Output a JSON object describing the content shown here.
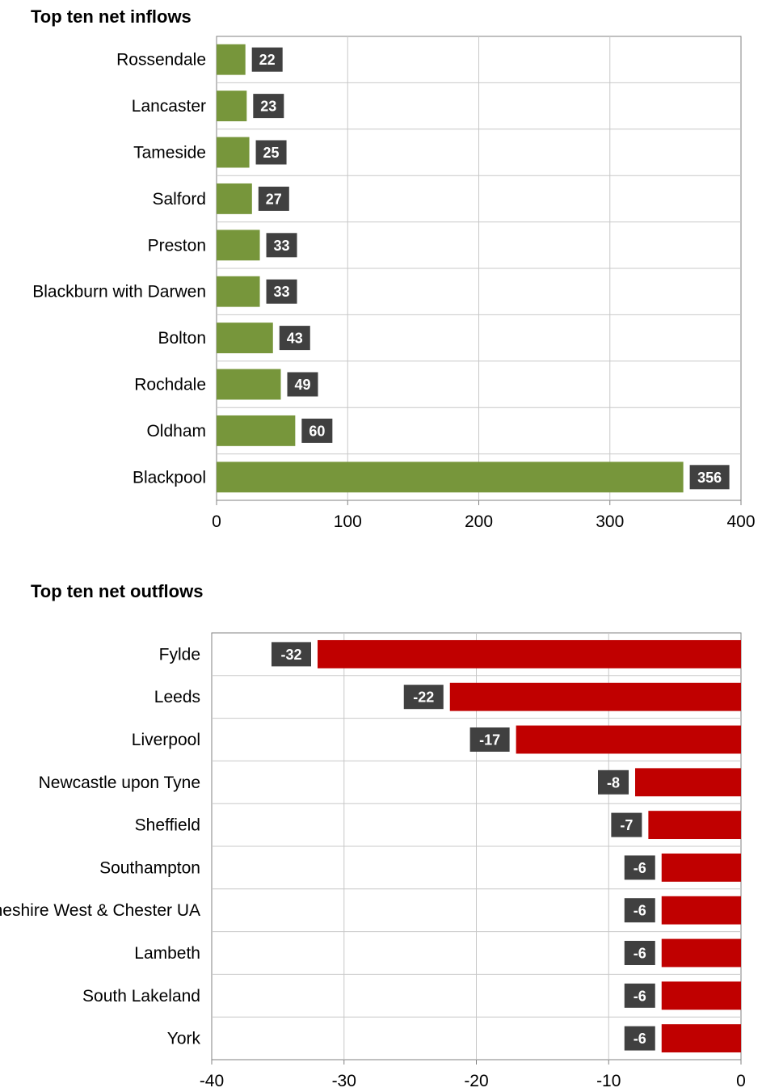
{
  "chart_data": [
    {
      "type": "bar",
      "orientation": "horizontal",
      "title": "Top ten net inflows",
      "categories": [
        "Rossendale",
        "Lancaster",
        "Tameside",
        "Salford",
        "Preston",
        "Blackburn with Darwen",
        "Bolton",
        "Rochdale",
        "Oldham",
        "Blackpool"
      ],
      "values": [
        22,
        23,
        25,
        27,
        33,
        33,
        43,
        49,
        60,
        356
      ],
      "xlim": [
        0,
        400
      ],
      "xticks": [
        0,
        100,
        200,
        300,
        400
      ],
      "grid": true,
      "color": "#77963b",
      "label_bg": "#404040"
    },
    {
      "type": "bar",
      "orientation": "horizontal",
      "title": "Top ten net outflows",
      "categories": [
        "Fylde",
        "Leeds",
        "Liverpool",
        "Newcastle upon Tyne",
        "Sheffield",
        "Southampton",
        "Cheshire West & Chester UA",
        "Lambeth",
        "South Lakeland",
        "York"
      ],
      "values": [
        -32,
        -22,
        -17,
        -8,
        -7,
        -6,
        -6,
        -6,
        -6,
        -6
      ],
      "xlim": [
        -40,
        0
      ],
      "xticks": [
        -40,
        -30,
        -20,
        -10,
        0
      ],
      "grid": true,
      "color": "#c00000",
      "label_bg": "#404040"
    }
  ]
}
